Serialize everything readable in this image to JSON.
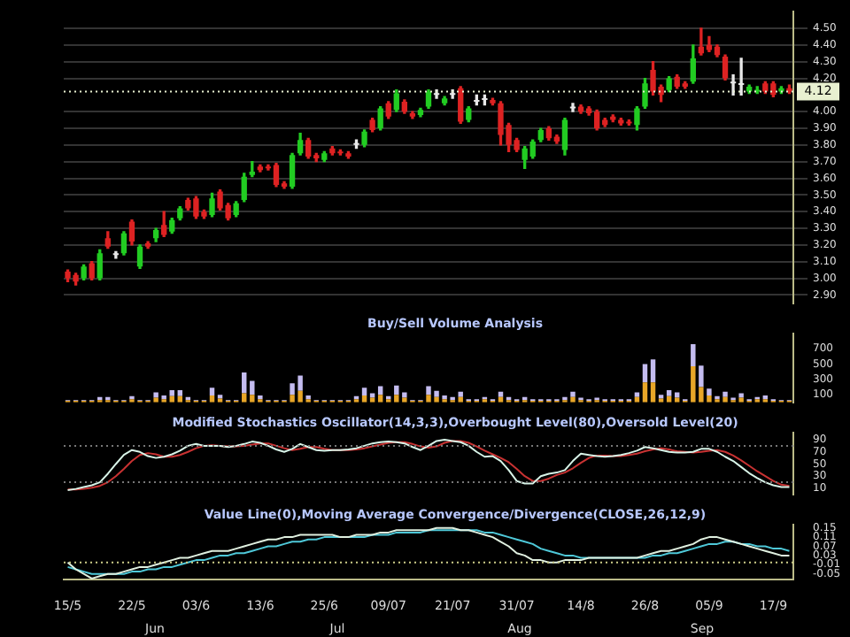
{
  "chart_data": [
    {
      "type": "candlestick",
      "ohlc": [
        [
          3.04,
          3.05,
          2.98,
          3.0
        ],
        [
          3.02,
          3.03,
          2.96,
          2.98
        ],
        [
          3.0,
          3.08,
          2.99,
          3.07
        ],
        [
          3.09,
          3.1,
          2.99,
          3.0
        ],
        [
          3.0,
          3.17,
          2.99,
          3.15
        ],
        [
          3.24,
          3.28,
          3.18,
          3.19
        ],
        [
          3.14,
          3.16,
          3.12,
          3.14
        ],
        [
          3.15,
          3.28,
          3.14,
          3.27
        ],
        [
          3.34,
          3.35,
          3.2,
          3.22
        ],
        [
          3.07,
          3.2,
          3.06,
          3.19
        ],
        [
          3.21,
          3.22,
          3.18,
          3.19
        ],
        [
          3.24,
          3.3,
          3.22,
          3.29
        ],
        [
          3.32,
          3.4,
          3.25,
          3.26
        ],
        [
          3.28,
          3.36,
          3.27,
          3.35
        ],
        [
          3.36,
          3.43,
          3.35,
          3.42
        ],
        [
          3.47,
          3.48,
          3.41,
          3.42
        ],
        [
          3.48,
          3.49,
          3.36,
          3.37
        ],
        [
          3.4,
          3.41,
          3.36,
          3.37
        ],
        [
          3.38,
          3.51,
          3.37,
          3.48
        ],
        [
          3.52,
          3.53,
          3.41,
          3.42
        ],
        [
          3.44,
          3.45,
          3.35,
          3.36
        ],
        [
          3.38,
          3.46,
          3.37,
          3.45
        ],
        [
          3.47,
          3.63,
          3.46,
          3.61
        ],
        [
          3.62,
          3.7,
          3.61,
          3.64
        ],
        [
          3.67,
          3.68,
          3.64,
          3.65
        ],
        [
          3.67,
          3.68,
          3.65,
          3.66
        ],
        [
          3.68,
          3.69,
          3.55,
          3.56
        ],
        [
          3.57,
          3.58,
          3.54,
          3.55
        ],
        [
          3.55,
          3.75,
          3.54,
          3.74
        ],
        [
          3.75,
          3.87,
          3.74,
          3.83
        ],
        [
          3.83,
          3.84,
          3.72,
          3.73
        ],
        [
          3.74,
          3.75,
          3.7,
          3.72
        ],
        [
          3.71,
          3.76,
          3.7,
          3.75
        ],
        [
          3.78,
          3.79,
          3.74,
          3.75
        ],
        [
          3.76,
          3.77,
          3.74,
          3.75
        ],
        [
          3.75,
          3.76,
          3.72,
          3.73
        ],
        [
          3.8,
          3.83,
          3.78,
          3.8
        ],
        [
          3.8,
          3.89,
          3.79,
          3.88
        ],
        [
          3.95,
          3.96,
          3.88,
          3.89
        ],
        [
          3.9,
          4.03,
          3.89,
          4.02
        ],
        [
          4.05,
          4.06,
          3.96,
          3.97
        ],
        [
          4.01,
          4.13,
          4.0,
          4.11
        ],
        [
          4.06,
          4.07,
          3.99,
          4.0
        ],
        [
          3.99,
          4.0,
          3.96,
          3.97
        ],
        [
          3.98,
          4.02,
          3.97,
          4.01
        ],
        [
          4.03,
          4.13,
          4.02,
          4.12
        ],
        [
          4.1,
          4.13,
          4.08,
          4.1
        ],
        [
          4.05,
          4.09,
          4.04,
          4.08
        ],
        [
          4.1,
          4.13,
          4.08,
          4.1
        ],
        [
          4.14,
          4.15,
          3.93,
          3.94
        ],
        [
          3.95,
          4.03,
          3.94,
          4.02
        ],
        [
          4.06,
          4.1,
          4.04,
          4.06
        ],
        [
          4.07,
          4.1,
          4.04,
          4.07
        ],
        [
          4.07,
          4.08,
          4.04,
          4.05
        ],
        [
          4.05,
          4.06,
          3.8,
          3.86
        ],
        [
          3.92,
          3.93,
          3.76,
          3.8
        ],
        [
          3.83,
          3.84,
          3.76,
          3.77
        ],
        [
          3.71,
          3.79,
          3.66,
          3.78
        ],
        [
          3.73,
          3.83,
          3.72,
          3.82
        ],
        [
          3.83,
          3.9,
          3.82,
          3.89
        ],
        [
          3.9,
          3.91,
          3.83,
          3.84
        ],
        [
          3.85,
          3.86,
          3.81,
          3.82
        ],
        [
          3.77,
          3.96,
          3.74,
          3.95
        ],
        [
          4.02,
          4.05,
          4.0,
          4.02
        ],
        [
          4.03,
          4.04,
          3.99,
          4.0
        ],
        [
          4.02,
          4.03,
          3.98,
          3.99
        ],
        [
          4.0,
          4.01,
          3.89,
          3.9
        ],
        [
          3.95,
          3.96,
          3.91,
          3.92
        ],
        [
          3.97,
          3.98,
          3.94,
          3.95
        ],
        [
          3.95,
          3.96,
          3.92,
          3.93
        ],
        [
          3.94,
          3.95,
          3.92,
          3.93
        ],
        [
          3.92,
          4.03,
          3.89,
          4.02
        ],
        [
          4.03,
          4.2,
          4.02,
          4.17
        ],
        [
          4.25,
          4.3,
          4.1,
          4.12
        ],
        [
          4.15,
          4.16,
          4.06,
          4.1
        ],
        [
          4.13,
          4.21,
          4.12,
          4.2
        ],
        [
          4.21,
          4.22,
          4.14,
          4.15
        ],
        [
          4.17,
          4.18,
          4.14,
          4.15
        ],
        [
          4.18,
          4.4,
          4.17,
          4.32
        ],
        [
          4.39,
          4.5,
          4.34,
          4.35
        ],
        [
          4.4,
          4.45,
          4.36,
          4.37
        ],
        [
          4.39,
          4.4,
          4.33,
          4.34
        ],
        [
          4.33,
          4.34,
          4.19,
          4.2
        ],
        [
          4.17,
          4.22,
          4.1,
          4.17
        ],
        [
          4.16,
          4.32,
          4.1,
          4.16
        ],
        [
          4.12,
          4.16,
          4.11,
          4.15
        ],
        [
          4.12,
          4.15,
          4.11,
          4.13
        ],
        [
          4.17,
          4.18,
          4.11,
          4.12
        ],
        [
          4.17,
          4.18,
          4.09,
          4.1
        ],
        [
          4.12,
          4.15,
          4.11,
          4.14
        ],
        [
          4.14,
          4.16,
          4.11,
          4.12
        ]
      ],
      "colors": [
        "#dd2222",
        "#dd2222",
        "#22cc22",
        "#dd2222",
        "#22cc22",
        "#dd2222",
        "#e8e8e8",
        "#22cc22",
        "#dd2222",
        "#22cc22",
        "#dd2222",
        "#22cc22",
        "#dd2222",
        "#22cc22",
        "#22cc22",
        "#dd2222",
        "#dd2222",
        "#dd2222",
        "#22cc22",
        "#dd2222",
        "#dd2222",
        "#22cc22",
        "#22cc22",
        "#22cc22",
        "#dd2222",
        "#dd2222",
        "#dd2222",
        "#dd2222",
        "#22cc22",
        "#22cc22",
        "#dd2222",
        "#dd2222",
        "#22cc22",
        "#dd2222",
        "#dd2222",
        "#dd2222",
        "#e8e8e8",
        "#22cc22",
        "#dd2222",
        "#22cc22",
        "#dd2222",
        "#22cc22",
        "#dd2222",
        "#dd2222",
        "#22cc22",
        "#22cc22",
        "#e8e8e8",
        "#22cc22",
        "#e8e8e8",
        "#dd2222",
        "#22cc22",
        "#e8e8e8",
        "#e8e8e8",
        "#dd2222",
        "#dd2222",
        "#dd2222",
        "#dd2222",
        "#22cc22",
        "#22cc22",
        "#22cc22",
        "#dd2222",
        "#dd2222",
        "#22cc22",
        "#e8e8e8",
        "#dd2222",
        "#dd2222",
        "#dd2222",
        "#dd2222",
        "#dd2222",
        "#dd2222",
        "#dd2222",
        "#22cc22",
        "#22cc22",
        "#dd2222",
        "#dd2222",
        "#22cc22",
        "#dd2222",
        "#dd2222",
        "#22cc22",
        "#dd2222",
        "#dd2222",
        "#dd2222",
        "#dd2222",
        "#e8e8e8",
        "#e8e8e8",
        "#22cc22",
        "#22cc22",
        "#dd2222",
        "#dd2222",
        "#22cc22",
        "#dd2222"
      ],
      "ylim": [
        2.85,
        4.6
      ],
      "yticks": [
        {
          "value": 2.9,
          "label": "2.90"
        },
        {
          "value": 3,
          "label": "3.00"
        },
        {
          "value": 3.1,
          "label": "3.10"
        },
        {
          "value": 3.2,
          "label": "3.20"
        },
        {
          "value": 3.3,
          "label": "3.30"
        },
        {
          "value": 3.4,
          "label": "3.40"
        },
        {
          "value": 3.5,
          "label": "3.50"
        },
        {
          "value": 3.6,
          "label": "3.60"
        },
        {
          "value": 3.7,
          "label": "3.70"
        },
        {
          "value": 3.8,
          "label": "3.80"
        },
        {
          "value": 3.9,
          "label": "3.90"
        },
        {
          "value": 4,
          "label": "4.00"
        },
        {
          "value": 4.2,
          "label": "4.20"
        },
        {
          "value": 4.3,
          "label": "4.30"
        },
        {
          "value": 4.4,
          "label": "4.40"
        },
        {
          "value": 4.5,
          "label": "4.50"
        }
      ],
      "ref_lines": [
        {
          "axis": "y",
          "value": 4.12,
          "label": "4.12",
          "color": "#e8f0d0",
          "line_style": "dotted"
        }
      ],
      "grid": "y",
      "tick_labels": "y"
    },
    {
      "type": "bar",
      "title": "Buy/Sell Volume Analysis",
      "stacked": true,
      "series": [
        {
          "color": "#e8a628",
          "values": [
            20,
            20,
            20,
            20,
            30,
            30,
            20,
            20,
            40,
            20,
            20,
            60,
            40,
            80,
            80,
            30,
            20,
            20,
            90,
            50,
            20,
            20,
            120,
            100,
            40,
            20,
            20,
            20,
            100,
            150,
            40,
            20,
            20,
            20,
            20,
            20,
            40,
            90,
            60,
            100,
            40,
            100,
            60,
            20,
            20,
            100,
            70,
            40,
            30,
            70,
            20,
            20,
            40,
            20,
            70,
            30,
            20,
            30,
            20,
            20,
            20,
            20,
            30,
            70,
            30,
            20,
            30,
            20,
            20,
            20,
            20,
            70,
            260,
            260,
            50,
            80,
            60,
            20,
            470,
            200,
            90,
            40,
            70,
            30,
            60,
            20,
            40,
            40,
            20,
            20,
            20
          ]
        },
        {
          "color": "#c4bcf0",
          "values": [
            10,
            10,
            10,
            10,
            40,
            40,
            10,
            10,
            40,
            10,
            10,
            70,
            50,
            80,
            80,
            40,
            10,
            10,
            100,
            50,
            10,
            10,
            270,
            180,
            50,
            10,
            10,
            10,
            150,
            200,
            50,
            10,
            10,
            10,
            10,
            10,
            40,
            100,
            60,
            110,
            40,
            120,
            70,
            10,
            10,
            110,
            80,
            50,
            40,
            70,
            20,
            20,
            30,
            20,
            70,
            40,
            20,
            40,
            20,
            20,
            20,
            20,
            40,
            70,
            30,
            20,
            30,
            20,
            20,
            20,
            20,
            60,
            240,
            300,
            50,
            80,
            70,
            20,
            290,
            280,
            90,
            40,
            70,
            30,
            60,
            20,
            30,
            50,
            20,
            10,
            10
          ]
        }
      ],
      "ylim": [
        0,
        900
      ],
      "yticks": [
        100,
        300,
        500,
        700
      ],
      "tick_labels": "y"
    },
    {
      "type": "line",
      "title": "Modified Stochastics Oscillator(14,3,3),Overbought Level(80),Oversold Level(20)",
      "series": [
        {
          "color": "#d8f4e8",
          "values": [
            7,
            9,
            12,
            15,
            20,
            34,
            50,
            65,
            73,
            70,
            63,
            60,
            62,
            66,
            72,
            80,
            83,
            80,
            80,
            80,
            78,
            80,
            83,
            87,
            85,
            80,
            74,
            70,
            75,
            83,
            78,
            73,
            72,
            73,
            73,
            74,
            76,
            80,
            84,
            86,
            87,
            86,
            84,
            78,
            73,
            80,
            88,
            90,
            88,
            86,
            80,
            70,
            62,
            63,
            55,
            40,
            22,
            18,
            18,
            30,
            34,
            36,
            40,
            55,
            67,
            65,
            63,
            62,
            63,
            65,
            68,
            72,
            78,
            76,
            73,
            70,
            69,
            69,
            70,
            75,
            75,
            70,
            62,
            55,
            45,
            35,
            27,
            20,
            15,
            12,
            12
          ]
        },
        {
          "color": "#c83232",
          "values": [
            8,
            8,
            9,
            11,
            14,
            20,
            30,
            42,
            55,
            65,
            68,
            66,
            62,
            62,
            65,
            70,
            76,
            80,
            81,
            80,
            79,
            79,
            80,
            82,
            84,
            84,
            80,
            76,
            73,
            75,
            78,
            78,
            75,
            73,
            73,
            73,
            74,
            76,
            79,
            82,
            85,
            86,
            86,
            83,
            79,
            77,
            79,
            85,
            88,
            88,
            85,
            79,
            72,
            66,
            60,
            53,
            42,
            30,
            22,
            22,
            26,
            32,
            36,
            43,
            52,
            60,
            64,
            64,
            63,
            63,
            65,
            67,
            71,
            74,
            76,
            74,
            71,
            70,
            69,
            70,
            72,
            73,
            70,
            64,
            56,
            47,
            38,
            30,
            22,
            16,
            14
          ]
        }
      ],
      "ref_lines": [
        {
          "axis": "y",
          "value": 80,
          "color": "#777777",
          "line_style": "dotted"
        },
        {
          "axis": "y",
          "value": 20,
          "color": "#777777",
          "line_style": "dotted"
        }
      ],
      "ylim": [
        0,
        102
      ],
      "yticks": [
        10,
        30,
        50,
        70,
        90
      ],
      "tick_labels": "y",
      "marker": "none",
      "line_style": "solid"
    },
    {
      "type": "line",
      "title": "Value Line(0),Moving Average Convergence/Divergence(CLOSE,26,12,9)",
      "categories": [
        "15/5",
        null,
        null,
        null,
        null,
        null,
        null,
        null,
        "22/5",
        null,
        null,
        null,
        null,
        null,
        null,
        null,
        "03/6",
        null,
        null,
        null,
        null,
        null,
        null,
        null,
        "13/6",
        null,
        null,
        null,
        null,
        null,
        null,
        null,
        "25/6",
        null,
        null,
        null,
        null,
        null,
        null,
        null,
        "09/07",
        null,
        null,
        null,
        null,
        null,
        null,
        null,
        "21/07",
        null,
        null,
        null,
        null,
        null,
        null,
        null,
        "31/07",
        null,
        null,
        null,
        null,
        null,
        null,
        null,
        "14/8",
        null,
        null,
        null,
        null,
        null,
        null,
        null,
        "26/8",
        null,
        null,
        null,
        null,
        null,
        null,
        null,
        "05/9",
        null,
        null,
        null,
        null,
        null,
        null,
        null,
        "17/9",
        null,
        null
      ],
      "series": [
        {
          "color": "#e0f0e0",
          "values": [
            0,
            -0.03,
            -0.05,
            -0.07,
            -0.06,
            -0.05,
            -0.05,
            -0.04,
            -0.03,
            -0.02,
            -0.02,
            -0.01,
            0,
            0.01,
            0.02,
            0.02,
            0.03,
            0.04,
            0.05,
            0.05,
            0.05,
            0.06,
            0.07,
            0.08,
            0.09,
            0.1,
            0.1,
            0.11,
            0.11,
            0.12,
            0.12,
            0.12,
            0.12,
            0.12,
            0.11,
            0.11,
            0.12,
            0.12,
            0.12,
            0.13,
            0.13,
            0.14,
            0.14,
            0.14,
            0.14,
            0.14,
            0.15,
            0.15,
            0.15,
            0.14,
            0.14,
            0.13,
            0.12,
            0.11,
            0.09,
            0.07,
            0.04,
            0.03,
            0.01,
            0.01,
            0,
            0,
            0.01,
            0.01,
            0.01,
            0.02,
            0.02,
            0.02,
            0.02,
            0.02,
            0.02,
            0.02,
            0.03,
            0.04,
            0.05,
            0.05,
            0.06,
            0.07,
            0.08,
            0.1,
            0.11,
            0.11,
            0.1,
            0.09,
            0.08,
            0.07,
            0.06,
            0.05,
            0.04,
            0.03,
            0.03
          ]
        },
        {
          "color": "#4ec8d8",
          "values": [
            -0.02,
            -0.03,
            -0.04,
            -0.05,
            -0.05,
            -0.05,
            -0.05,
            -0.05,
            -0.04,
            -0.04,
            -0.03,
            -0.03,
            -0.02,
            -0.02,
            -0.01,
            0,
            0.01,
            0.01,
            0.02,
            0.03,
            0.03,
            0.04,
            0.04,
            0.05,
            0.06,
            0.07,
            0.07,
            0.08,
            0.09,
            0.09,
            0.1,
            0.1,
            0.11,
            0.11,
            0.11,
            0.11,
            0.11,
            0.11,
            0.12,
            0.12,
            0.12,
            0.13,
            0.13,
            0.13,
            0.13,
            0.14,
            0.14,
            0.14,
            0.14,
            0.14,
            0.14,
            0.14,
            0.13,
            0.13,
            0.12,
            0.11,
            0.1,
            0.09,
            0.08,
            0.06,
            0.05,
            0.04,
            0.03,
            0.03,
            0.02,
            0.02,
            0.02,
            0.02,
            0.02,
            0.02,
            0.02,
            0.02,
            0.02,
            0.03,
            0.03,
            0.04,
            0.04,
            0.05,
            0.06,
            0.07,
            0.08,
            0.08,
            0.09,
            0.09,
            0.08,
            0.08,
            0.07,
            0.07,
            0.06,
            0.06,
            0.05
          ]
        }
      ],
      "ref_lines": [
        {
          "axis": "y",
          "value": 0,
          "color": "#cccc88",
          "line_style": "dotted"
        }
      ],
      "ylim": [
        -0.075,
        0.165
      ],
      "yticks": [
        -0.05,
        -0.01,
        0.03,
        0.07,
        0.11,
        0.15
      ],
      "marker": "none",
      "line_style": "solid",
      "annotations": [
        "Jun",
        "Jul",
        "Aug",
        "Sep"
      ]
    }
  ]
}
